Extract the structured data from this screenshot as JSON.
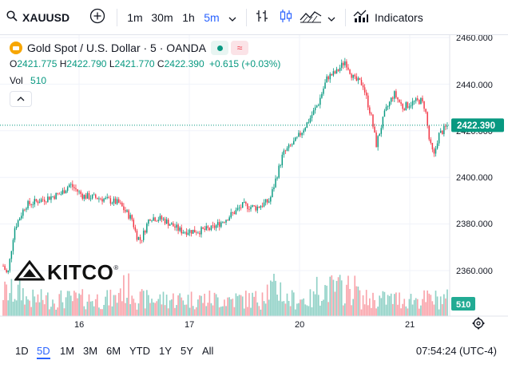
{
  "toolbar": {
    "symbol": "XAUUSD",
    "intervals": [
      "1m",
      "30m",
      "1h",
      "5m"
    ],
    "active_interval": "5m",
    "indicators_label": "Indicators",
    "icons": [
      "plus-circle-icon",
      "chevron-down-icon",
      "compare-icon",
      "candles-icon",
      "area-chart-icon",
      "chevron-down-icon",
      "indicators-icon"
    ]
  },
  "legend": {
    "title": "Gold Spot / U.S. Dollar · 5 · OANDA",
    "ohlc": {
      "o_label": "O",
      "o": "2421.775",
      "h_label": "H",
      "h": "2422.790",
      "l_label": "L",
      "l": "2421.770",
      "c_label": "C",
      "c": "2422.390",
      "change": "+0.615 (+0.03%)"
    },
    "vol_label": "Vol",
    "vol_value": "510"
  },
  "price_axis": {
    "ticks": [
      "2460.000",
      "2440.000",
      "2420.000",
      "2400.000",
      "2380.000",
      "2360.000"
    ],
    "current_price": "2422.390",
    "current_volume": "510"
  },
  "time_axis": {
    "ticks": [
      "16",
      "17",
      "20",
      "21"
    ]
  },
  "watermark": "KITCO",
  "ranges": [
    "1D",
    "5D",
    "1M",
    "3M",
    "6M",
    "YTD",
    "1Y",
    "5Y",
    "All"
  ],
  "active_range": "5D",
  "clock": "07:54:24 (UTC-4)",
  "colors": {
    "up": "#089981",
    "down": "#f23645",
    "accent": "#2962ff",
    "price_tag": "#089981"
  },
  "chart_data": {
    "type": "candlestick",
    "title": "",
    "ylim": [
      2350,
      2462
    ],
    "x_ticks": [
      "16",
      "17",
      "20",
      "21"
    ],
    "path": [
      [
        0.0,
        2362
      ],
      [
        0.01,
        2358
      ],
      [
        0.025,
        2378
      ],
      [
        0.05,
        2388
      ],
      [
        0.08,
        2390
      ],
      [
        0.13,
        2393
      ],
      [
        0.15,
        2397
      ],
      [
        0.18,
        2392
      ],
      [
        0.22,
        2391
      ],
      [
        0.26,
        2389
      ],
      [
        0.29,
        2382
      ],
      [
        0.3,
        2375
      ],
      [
        0.31,
        2373
      ],
      [
        0.33,
        2383
      ],
      [
        0.36,
        2382
      ],
      [
        0.4,
        2377
      ],
      [
        0.44,
        2377
      ],
      [
        0.47,
        2378
      ],
      [
        0.5,
        2382
      ],
      [
        0.54,
        2388
      ],
      [
        0.57,
        2387
      ],
      [
        0.6,
        2390
      ],
      [
        0.63,
        2410
      ],
      [
        0.66,
        2416
      ],
      [
        0.69,
        2425
      ],
      [
        0.71,
        2432
      ],
      [
        0.73,
        2443
      ],
      [
        0.75,
        2445
      ],
      [
        0.77,
        2450
      ],
      [
        0.79,
        2442
      ],
      [
        0.81,
        2440
      ],
      [
        0.83,
        2425
      ],
      [
        0.84,
        2414
      ],
      [
        0.86,
        2428
      ],
      [
        0.88,
        2436
      ],
      [
        0.9,
        2430
      ],
      [
        0.92,
        2432
      ],
      [
        0.94,
        2433
      ],
      [
        0.95,
        2430
      ],
      [
        0.96,
        2415
      ],
      [
        0.97,
        2409
      ],
      [
        0.98,
        2418
      ],
      [
        1.0,
        2422
      ]
    ]
  }
}
